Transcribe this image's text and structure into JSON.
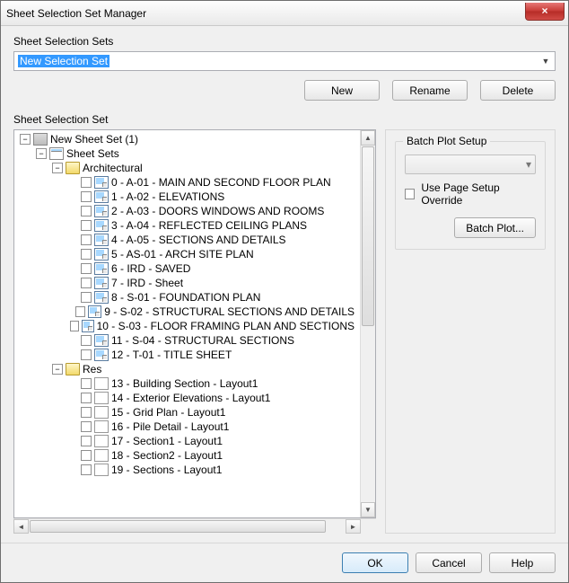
{
  "window": {
    "title": "Sheet Selection Set Manager",
    "close_glyph": "×"
  },
  "section1_label": "Sheet Selection Sets",
  "combo_value": "New Selection Set",
  "buttons": {
    "new": "New",
    "rename": "Rename",
    "delete": "Delete"
  },
  "section2_label": "Sheet Selection Set",
  "tree": [
    {
      "depth": 0,
      "expander": "-",
      "check": false,
      "icon": "server",
      "label": "New Sheet Set (1)"
    },
    {
      "depth": 1,
      "expander": "-",
      "check": false,
      "icon": "stack",
      "label": "Sheet Sets"
    },
    {
      "depth": 2,
      "expander": "-",
      "check": false,
      "icon": "folder",
      "label": "Architectural"
    },
    {
      "depth": 3,
      "expander": "",
      "check": true,
      "icon": "sheet",
      "label": "0 - A-01 - MAIN AND SECOND FLOOR PLAN"
    },
    {
      "depth": 3,
      "expander": "",
      "check": true,
      "icon": "sheet",
      "label": "1 - A-02 - ELEVATIONS"
    },
    {
      "depth": 3,
      "expander": "",
      "check": true,
      "icon": "sheet",
      "label": "2 - A-03 - DOORS WINDOWS AND ROOMS"
    },
    {
      "depth": 3,
      "expander": "",
      "check": true,
      "icon": "sheet",
      "label": "3 - A-04 - REFLECTED CEILING PLANS"
    },
    {
      "depth": 3,
      "expander": "",
      "check": true,
      "icon": "sheet",
      "label": "4 - A-05 - SECTIONS AND DETAILS"
    },
    {
      "depth": 3,
      "expander": "",
      "check": true,
      "icon": "sheet",
      "label": "5 - AS-01 - ARCH SITE PLAN"
    },
    {
      "depth": 3,
      "expander": "",
      "check": true,
      "icon": "sheet",
      "label": "6 - IRD - SAVED"
    },
    {
      "depth": 3,
      "expander": "",
      "check": true,
      "icon": "sheet",
      "label": "7 - IRD - Sheet"
    },
    {
      "depth": 3,
      "expander": "",
      "check": true,
      "icon": "sheet",
      "label": "8 - S-01 - FOUNDATION PLAN"
    },
    {
      "depth": 3,
      "expander": "",
      "check": true,
      "icon": "sheet",
      "label": "9 - S-02 - STRUCTURAL SECTIONS AND DETAILS"
    },
    {
      "depth": 3,
      "expander": "",
      "check": true,
      "icon": "sheet",
      "label": "10 - S-03 - FLOOR FRAMING PLAN AND SECTIONS"
    },
    {
      "depth": 3,
      "expander": "",
      "check": true,
      "icon": "sheet",
      "label": "11 - S-04 - STRUCTURAL SECTIONS"
    },
    {
      "depth": 3,
      "expander": "",
      "check": true,
      "icon": "sheet",
      "label": "12 - T-01 - TITLE SHEET"
    },
    {
      "depth": 2,
      "expander": "-",
      "check": false,
      "icon": "folder",
      "label": "Res"
    },
    {
      "depth": 3,
      "expander": "",
      "check": true,
      "icon": "layout",
      "label": "13 - Building Section - Layout1"
    },
    {
      "depth": 3,
      "expander": "",
      "check": true,
      "icon": "layout",
      "label": "14 - Exterior Elevations - Layout1"
    },
    {
      "depth": 3,
      "expander": "",
      "check": true,
      "icon": "layout",
      "label": "15 - Grid Plan - Layout1"
    },
    {
      "depth": 3,
      "expander": "",
      "check": true,
      "icon": "layout",
      "label": "16 - Pile Detail - Layout1"
    },
    {
      "depth": 3,
      "expander": "",
      "check": true,
      "icon": "layout",
      "label": "17 - Section1 - Layout1"
    },
    {
      "depth": 3,
      "expander": "",
      "check": true,
      "icon": "layout",
      "label": "18 - Section2 - Layout1"
    },
    {
      "depth": 3,
      "expander": "",
      "check": true,
      "icon": "layout",
      "label": "19 - Sections - Layout1"
    }
  ],
  "batch": {
    "group_title": "Batch Plot Setup",
    "dropdown_glyph": "▾",
    "override_label": "Use Page Setup Override",
    "button": "Batch Plot..."
  },
  "footer": {
    "ok": "OK",
    "cancel": "Cancel",
    "help": "Help"
  },
  "colors": {
    "selection_bg": "#3399ff",
    "selection_fg": "#ffffff"
  }
}
